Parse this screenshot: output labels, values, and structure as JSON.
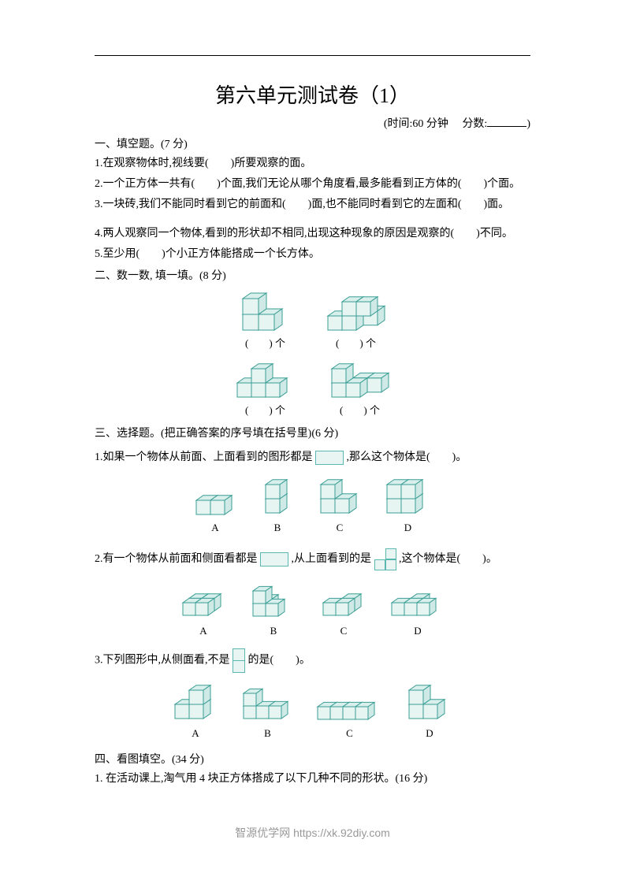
{
  "colors": {
    "cube_stroke": "#3a9e94",
    "cube_fill": "#e6f4f2",
    "cube_fill_top": "#d8efec",
    "cube_fill_side": "#cfeae6",
    "text": "#000000",
    "footer": "#999999",
    "bg": "#ffffff"
  },
  "title": "第六单元测试卷（1）",
  "meta": {
    "time_label": "(时间:60 分钟",
    "score_label": "分数:",
    "close": ")"
  },
  "s1": {
    "head": "一、填空题。(7 分)",
    "q1": "1.在观察物体时,视线要(　　)所要观察的面。",
    "q2": "2.一个正方体一共有(　　)个面,我们无论从哪个角度看,最多能看到正方体的(　　)个面。",
    "q3": "3.一块砖,我们不能同时看到它的前面和(　　)面,也不能同时看到它的左面和(　　)面。",
    "q4": "4.两人观察同一个物体,看到的形状却不相同,出现这种现象的原因是观察的(　　)不同。",
    "q5": "5.至少用(　　)个小正方体能搭成一个长方体。"
  },
  "s2": {
    "head": "二、数一数, 填一填。(8 分)",
    "label": "(　　) 个"
  },
  "s3": {
    "head": "三、选择题。(把正确答案的序号填在括号里)(6 分)",
    "q1a": "1.如果一个物体从前面、上面看到的图形都是",
    "q1b": ",那么这个物体是(　　)。",
    "q2a": "2.有一个物体从前面和侧面看都是",
    "q2b": ",从上面看到的是",
    "q2c": ",这个物体是(　　)。",
    "q3a": "3.下列图形中,从侧面看,不是",
    "q3b": "的是(　　)。",
    "labels": [
      "A",
      "B",
      "C",
      "D"
    ]
  },
  "s4": {
    "head": "四、看图填空。(34 分)",
    "q1": "1. 在活动课上,淘气用 4 块正方体搭成了以下几种不同的形状。(16 分)"
  },
  "footer": "智源优学网 https://xk.92diy.com"
}
